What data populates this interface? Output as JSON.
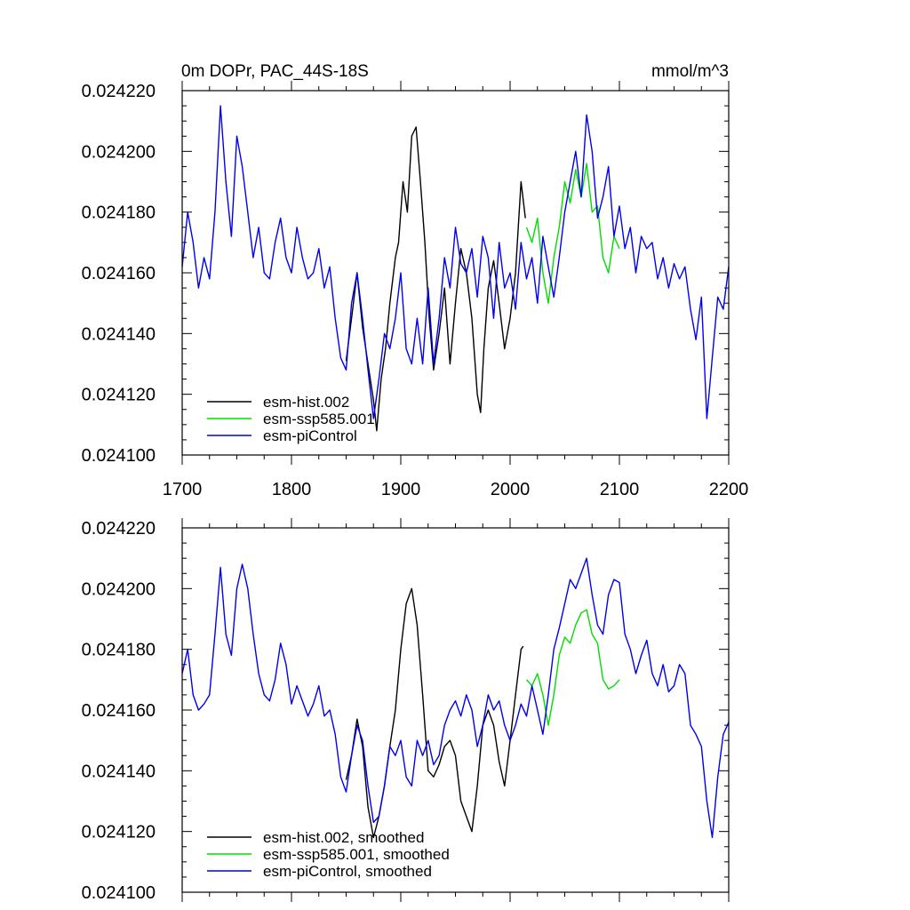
{
  "chart_data": [
    {
      "type": "line",
      "panel": "top",
      "title_left": "0m DOPr, PAC_44S-18S",
      "title_right": "mmol/m^3",
      "xlim": [
        1700,
        2200
      ],
      "ylim": [
        0.0241,
        0.02422
      ],
      "xticks": [
        "1700",
        "1800",
        "1900",
        "2000",
        "2100",
        "2200"
      ],
      "yticks": [
        "0.024100",
        "0.024120",
        "0.024140",
        "0.024160",
        "0.024180",
        "0.024200",
        "0.024220"
      ],
      "legend_position": "bottom-left",
      "series": [
        {
          "name": "esm-hist.002",
          "color": "#000000",
          "x": [
            1850,
            1855,
            1860,
            1865,
            1870,
            1875,
            1878,
            1882,
            1886,
            1890,
            1895,
            1898,
            1902,
            1906,
            1910,
            1914,
            1918,
            1922,
            1926,
            1930,
            1935,
            1940,
            1945,
            1950,
            1955,
            1960,
            1965,
            1970,
            1973,
            1976,
            1980,
            1985,
            1990,
            1995,
            2000,
            2005,
            2010,
            2014
          ],
          "values": [
            0.024131,
            0.024145,
            0.02416,
            0.024142,
            0.02413,
            0.024118,
            0.024108,
            0.024125,
            0.024135,
            0.02415,
            0.024165,
            0.02417,
            0.02419,
            0.02418,
            0.024205,
            0.024208,
            0.02419,
            0.02417,
            0.024145,
            0.024128,
            0.02414,
            0.024155,
            0.02413,
            0.02415,
            0.024168,
            0.02416,
            0.024145,
            0.02412,
            0.024114,
            0.024135,
            0.024155,
            0.024164,
            0.02415,
            0.024135,
            0.024145,
            0.02416,
            0.02419,
            0.024178
          ]
        },
        {
          "name": "esm-ssp585.001",
          "color": "#00dd00",
          "x": [
            2015,
            2020,
            2025,
            2030,
            2035,
            2040,
            2045,
            2050,
            2055,
            2060,
            2065,
            2070,
            2075,
            2080,
            2085,
            2090,
            2095,
            2100
          ],
          "values": [
            0.024175,
            0.02417,
            0.024178,
            0.02416,
            0.02415,
            0.024165,
            0.024175,
            0.02419,
            0.024183,
            0.024194,
            0.024185,
            0.024196,
            0.02418,
            0.024182,
            0.024165,
            0.02416,
            0.024172,
            0.024168
          ]
        },
        {
          "name": "esm-piControl",
          "color": "#0000ee",
          "x": [
            1700,
            1705,
            1710,
            1715,
            1720,
            1725,
            1730,
            1735,
            1740,
            1745,
            1750,
            1755,
            1760,
            1765,
            1770,
            1775,
            1780,
            1785,
            1790,
            1795,
            1800,
            1805,
            1810,
            1815,
            1820,
            1825,
            1830,
            1835,
            1840,
            1845,
            1850,
            1855,
            1860,
            1865,
            1870,
            1875,
            1880,
            1885,
            1890,
            1895,
            1900,
            1905,
            1910,
            1915,
            1920,
            1925,
            1930,
            1935,
            1940,
            1945,
            1950,
            1955,
            1960,
            1965,
            1970,
            1975,
            1980,
            1985,
            1990,
            1995,
            2000,
            2005,
            2010,
            2015,
            2020,
            2025,
            2030,
            2035,
            2040,
            2045,
            2050,
            2055,
            2060,
            2065,
            2070,
            2075,
            2080,
            2085,
            2090,
            2095,
            2100,
            2105,
            2110,
            2115,
            2120,
            2125,
            2130,
            2135,
            2140,
            2145,
            2150,
            2155,
            2160,
            2165,
            2170,
            2175,
            2180,
            2185,
            2190,
            2195,
            2200
          ],
          "values": [
            0.024162,
            0.02418,
            0.02417,
            0.024155,
            0.024165,
            0.024158,
            0.02418,
            0.024215,
            0.02419,
            0.024172,
            0.024205,
            0.024195,
            0.02418,
            0.024165,
            0.024175,
            0.02416,
            0.024158,
            0.02417,
            0.024178,
            0.024165,
            0.02416,
            0.024175,
            0.024165,
            0.024158,
            0.02416,
            0.024168,
            0.024155,
            0.024162,
            0.024145,
            0.024132,
            0.024128,
            0.02415,
            0.02416,
            0.024145,
            0.024128,
            0.024112,
            0.024125,
            0.02414,
            0.024135,
            0.024145,
            0.02416,
            0.024135,
            0.02413,
            0.024145,
            0.02413,
            0.024155,
            0.02413,
            0.024145,
            0.024165,
            0.024155,
            0.024175,
            0.024163,
            0.02416,
            0.024168,
            0.024152,
            0.024172,
            0.024165,
            0.024145,
            0.02417,
            0.024155,
            0.02416,
            0.024148,
            0.02417,
            0.024158,
            0.024165,
            0.02415,
            0.024172,
            0.024162,
            0.024152,
            0.024165,
            0.02418,
            0.02419,
            0.0242,
            0.024185,
            0.024212,
            0.0242,
            0.024178,
            0.024185,
            0.024195,
            0.024172,
            0.024182,
            0.024168,
            0.024175,
            0.02416,
            0.024172,
            0.024168,
            0.02417,
            0.024158,
            0.024165,
            0.024155,
            0.024163,
            0.024158,
            0.024162,
            0.024148,
            0.024138,
            0.024152,
            0.024112,
            0.024132,
            0.024152,
            0.024148,
            0.024162
          ]
        }
      ]
    },
    {
      "type": "line",
      "panel": "bottom",
      "xlim": [
        1700,
        2200
      ],
      "ylim": [
        0.0241,
        0.02422
      ],
      "yticks": [
        "0.024100",
        "0.024120",
        "0.024140",
        "0.024160",
        "0.024180",
        "0.024200",
        "0.024220"
      ],
      "legend_position": "bottom-left",
      "series": [
        {
          "name": "esm-hist.002, smoothed",
          "color": "#000000",
          "x": [
            1850,
            1855,
            1860,
            1865,
            1870,
            1875,
            1880,
            1885,
            1890,
            1895,
            1900,
            1905,
            1910,
            1915,
            1920,
            1925,
            1930,
            1935,
            1940,
            1945,
            1950,
            1955,
            1960,
            1965,
            1970,
            1975,
            1980,
            1985,
            1990,
            1995,
            2000,
            2005,
            2010,
            2012
          ],
          "values": [
            0.024137,
            0.024145,
            0.024157,
            0.024148,
            0.024128,
            0.024118,
            0.024125,
            0.024135,
            0.024148,
            0.02416,
            0.02418,
            0.024195,
            0.0242,
            0.024188,
            0.024165,
            0.02414,
            0.024138,
            0.024142,
            0.024148,
            0.02415,
            0.024145,
            0.02413,
            0.024125,
            0.02412,
            0.024135,
            0.024155,
            0.02416,
            0.024155,
            0.024143,
            0.024135,
            0.02415,
            0.024165,
            0.02418,
            0.024181
          ]
        },
        {
          "name": "esm-ssp585.001, smoothed",
          "color": "#00dd00",
          "x": [
            2015,
            2020,
            2025,
            2030,
            2035,
            2040,
            2045,
            2050,
            2055,
            2060,
            2065,
            2070,
            2075,
            2080,
            2085,
            2090,
            2095,
            2100
          ],
          "values": [
            0.02417,
            0.024168,
            0.024172,
            0.024165,
            0.024155,
            0.024165,
            0.024178,
            0.024184,
            0.024182,
            0.024188,
            0.024192,
            0.024193,
            0.024185,
            0.024182,
            0.02417,
            0.024167,
            0.024168,
            0.02417
          ]
        },
        {
          "name": "esm-piControl, smoothed",
          "color": "#0000ee",
          "x": [
            1700,
            1705,
            1710,
            1715,
            1720,
            1725,
            1730,
            1735,
            1740,
            1745,
            1750,
            1755,
            1760,
            1765,
            1770,
            1775,
            1780,
            1785,
            1790,
            1795,
            1800,
            1805,
            1810,
            1815,
            1820,
            1825,
            1830,
            1835,
            1840,
            1845,
            1850,
            1855,
            1860,
            1865,
            1870,
            1875,
            1880,
            1885,
            1890,
            1895,
            1900,
            1905,
            1910,
            1915,
            1920,
            1925,
            1930,
            1935,
            1940,
            1945,
            1950,
            1955,
            1960,
            1965,
            1970,
            1975,
            1980,
            1985,
            1990,
            1995,
            2000,
            2005,
            2010,
            2015,
            2020,
            2025,
            2030,
            2035,
            2040,
            2045,
            2050,
            2055,
            2060,
            2065,
            2070,
            2075,
            2080,
            2085,
            2090,
            2095,
            2100,
            2105,
            2110,
            2115,
            2120,
            2125,
            2130,
            2135,
            2140,
            2145,
            2150,
            2155,
            2160,
            2165,
            2170,
            2175,
            2180,
            2185,
            2190,
            2195,
            2200
          ],
          "values": [
            0.024172,
            0.02418,
            0.024165,
            0.02416,
            0.024162,
            0.024165,
            0.024185,
            0.024207,
            0.024185,
            0.024178,
            0.0242,
            0.024208,
            0.0242,
            0.024185,
            0.024172,
            0.024165,
            0.024163,
            0.02417,
            0.024182,
            0.024175,
            0.024162,
            0.024168,
            0.024163,
            0.024158,
            0.024162,
            0.024168,
            0.024158,
            0.02416,
            0.024152,
            0.024138,
            0.024133,
            0.024145,
            0.024155,
            0.02415,
            0.024135,
            0.024123,
            0.024125,
            0.024135,
            0.024148,
            0.024145,
            0.02415,
            0.024138,
            0.024135,
            0.02415,
            0.024145,
            0.02415,
            0.024142,
            0.024145,
            0.024155,
            0.02416,
            0.024163,
            0.024158,
            0.024165,
            0.02416,
            0.024148,
            0.024155,
            0.024165,
            0.02416,
            0.024163,
            0.024155,
            0.02415,
            0.024155,
            0.024162,
            0.024158,
            0.024168,
            0.02416,
            0.024152,
            0.024165,
            0.02418,
            0.024187,
            0.024195,
            0.024203,
            0.0242,
            0.024205,
            0.02421,
            0.024198,
            0.024188,
            0.024185,
            0.024198,
            0.024203,
            0.024202,
            0.024185,
            0.02418,
            0.024172,
            0.024178,
            0.024183,
            0.024172,
            0.024168,
            0.024175,
            0.024166,
            0.024168,
            0.024175,
            0.024172,
            0.024155,
            0.024152,
            0.024148,
            0.02413,
            0.024118,
            0.024138,
            0.024152,
            0.024156
          ]
        }
      ]
    }
  ]
}
